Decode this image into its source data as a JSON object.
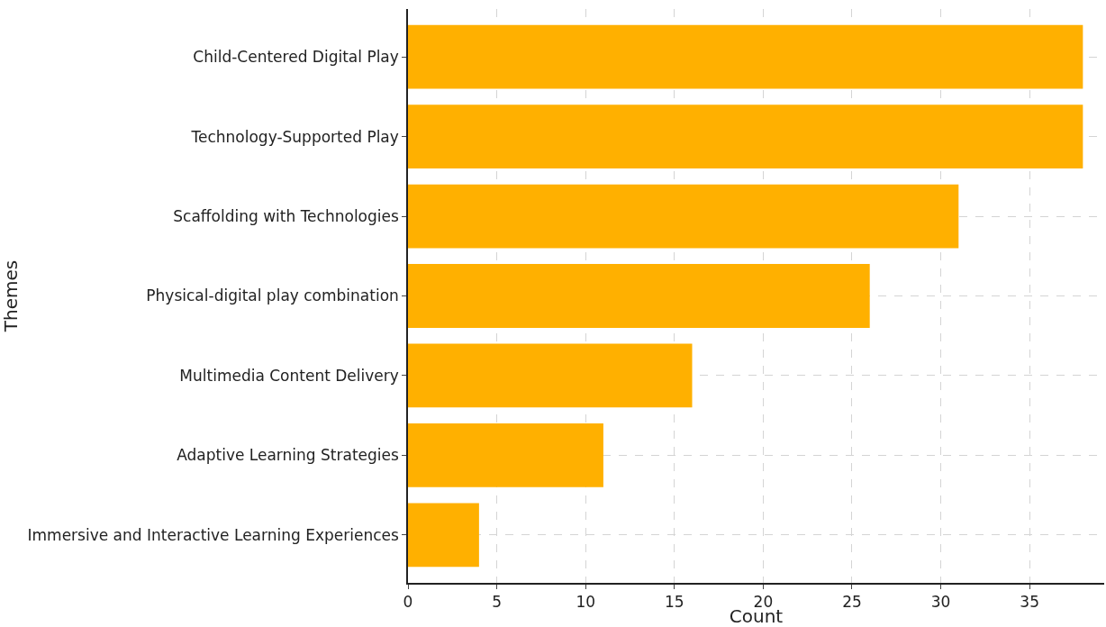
{
  "chart_data": {
    "type": "bar",
    "orientation": "horizontal",
    "xlabel": "Count",
    "ylabel": "Themes",
    "categories": [
      "Child-Centered Digital Play",
      "Technology-Supported Play",
      "Scaffolding with Technologies",
      "Physical-digital play combination",
      "Multimedia Content Delivery",
      "Adaptive Learning Strategies",
      "Immersive and Interactive Learning Experiences"
    ],
    "values": [
      38,
      38,
      31,
      26,
      16,
      11,
      4
    ],
    "color": "#ffb000",
    "xlim": [
      0,
      39.2
    ],
    "xticks": [
      0,
      5,
      10,
      15,
      20,
      25,
      30,
      35
    ],
    "grid": true
  }
}
